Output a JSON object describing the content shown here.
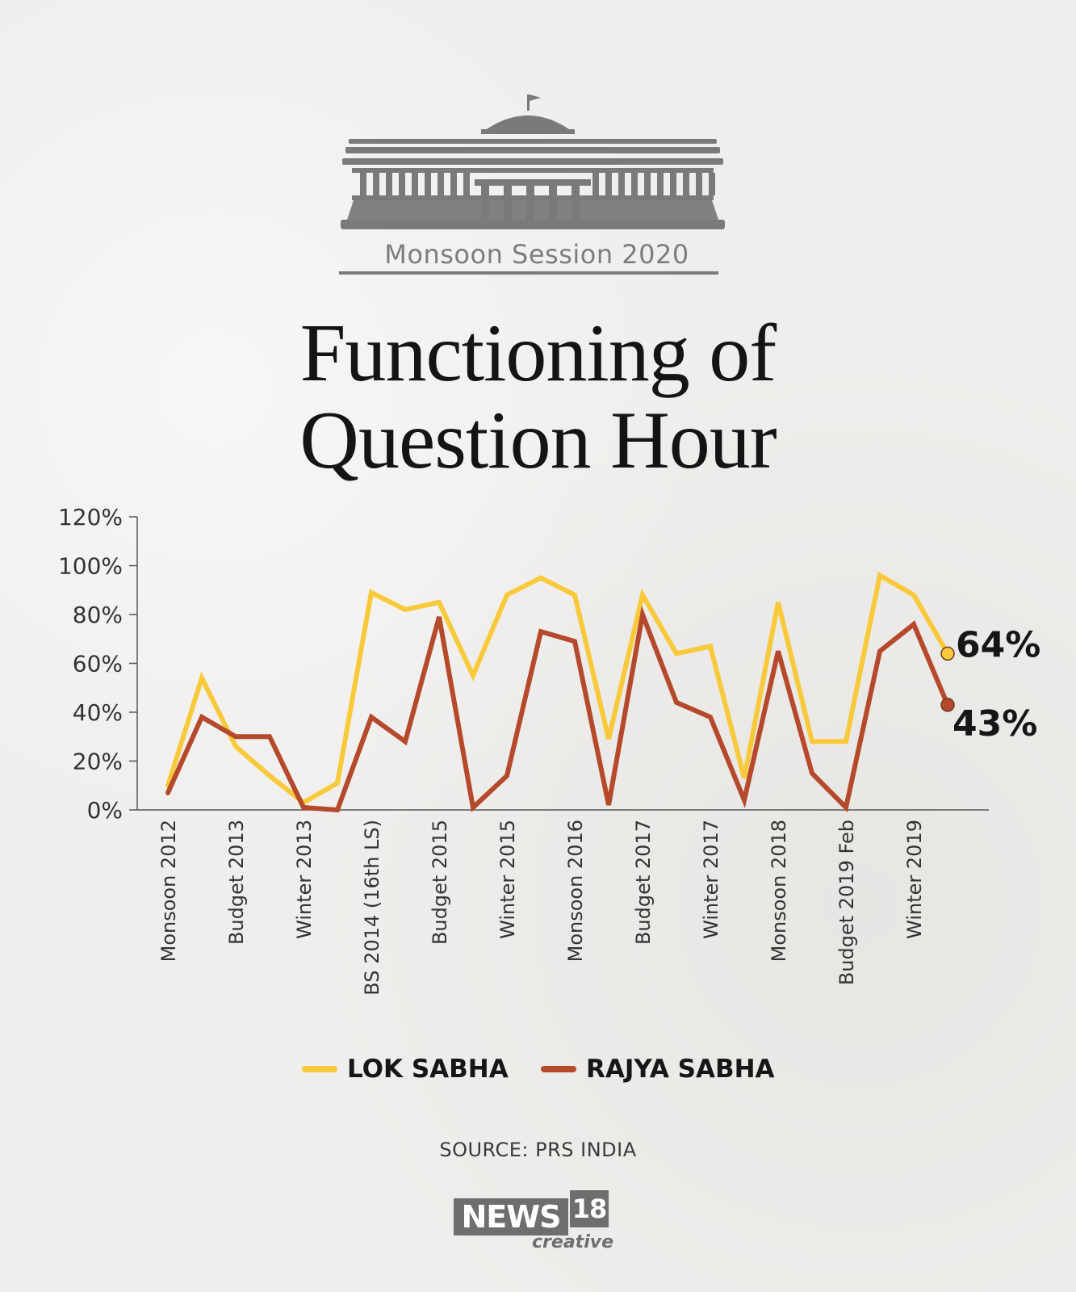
{
  "header": {
    "badge_text": "Monsoon Session 2020",
    "title_line1": "Functioning of",
    "title_line2": "Question Hour"
  },
  "chart_data": {
    "type": "line",
    "title": "Functioning of Question Hour",
    "xlabel": "",
    "ylabel": "",
    "ylim": [
      0,
      120
    ],
    "yticks": [
      "0%",
      "20%",
      "40%",
      "60%",
      "80%",
      "100%",
      "120%"
    ],
    "ytick_values": [
      0,
      20,
      40,
      60,
      80,
      100,
      120
    ],
    "grid": false,
    "legend_position": "bottom",
    "x_count": 24,
    "xtick_labels": [
      {
        "index": 0,
        "label": "Monsoon 2012"
      },
      {
        "index": 2,
        "label": "Budget 2013"
      },
      {
        "index": 4,
        "label": "Winter 2013"
      },
      {
        "index": 6,
        "label": "BS 2014 (16th LS)"
      },
      {
        "index": 8,
        "label": "Budget 2015"
      },
      {
        "index": 10,
        "label": "Winter 2015"
      },
      {
        "index": 12,
        "label": "Monsoon 2016"
      },
      {
        "index": 14,
        "label": "Budget 2017"
      },
      {
        "index": 16,
        "label": "Winter 2017"
      },
      {
        "index": 18,
        "label": "Monsoon 2018"
      },
      {
        "index": 20,
        "label": "Budget 2019 Feb"
      },
      {
        "index": 22,
        "label": "Winter 2019"
      }
    ],
    "series": [
      {
        "name": "LOK SABHA",
        "color": "#f8c93a",
        "values": [
          10,
          54,
          26,
          14,
          3,
          11,
          89,
          82,
          85,
          55,
          88,
          95,
          88,
          29,
          88,
          64,
          67,
          13,
          85,
          28,
          28,
          96,
          88,
          64
        ],
        "end_label": "64%"
      },
      {
        "name": "RAJYA SABHA",
        "color": "#b5492b",
        "values": [
          7,
          38,
          30,
          30,
          1,
          0,
          38,
          28,
          79,
          1,
          14,
          73,
          69,
          2,
          80,
          44,
          38,
          4,
          65,
          15,
          1,
          65,
          76,
          43
        ],
        "end_label": "43%"
      }
    ]
  },
  "legend": {
    "items": [
      {
        "label": "LOK SABHA",
        "color": "#f8c93a"
      },
      {
        "label": "RAJYA SABHA",
        "color": "#b5492b"
      }
    ]
  },
  "footer": {
    "source": "SOURCE: PRS INDIA",
    "logo_news": "NEWS",
    "logo_number": "18",
    "logo_creative": "creative"
  }
}
